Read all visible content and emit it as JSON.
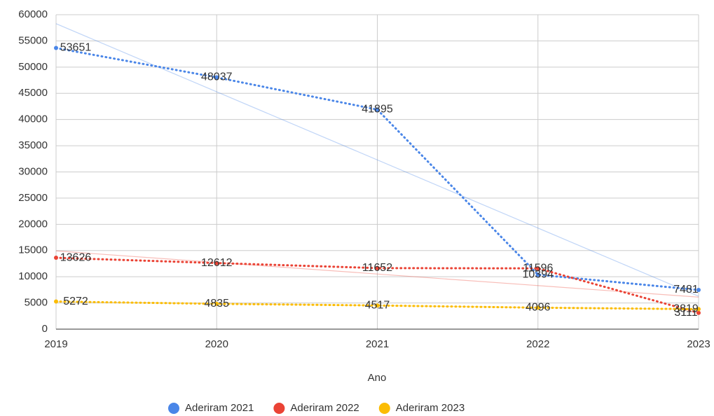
{
  "chart_data": {
    "type": "line",
    "x_label": "Ano",
    "x": [
      2019,
      2020,
      2021,
      2022,
      2023
    ],
    "xlim": [
      2019,
      2023
    ],
    "xticks": [
      2019,
      2020,
      2021,
      2022,
      2023
    ],
    "ylim": [
      0,
      60000
    ],
    "yticks": [
      0,
      5000,
      10000,
      15000,
      20000,
      25000,
      30000,
      35000,
      40000,
      45000,
      50000,
      55000,
      60000
    ],
    "grid": true,
    "trendline": true,
    "line_style": "dotted",
    "legend": "bottom",
    "series": [
      {
        "name": "Aderiram 2021",
        "color": "#4a86e8",
        "values": [
          53651,
          48037,
          41895,
          10394,
          7481
        ]
      },
      {
        "name": "Aderiram 2022",
        "color": "#ea4335",
        "values": [
          13626,
          12612,
          11652,
          11596,
          3111
        ]
      },
      {
        "name": "Aderiram 2023",
        "color": "#fbbc04",
        "values": [
          5272,
          4835,
          4517,
          4096,
          3819
        ]
      }
    ]
  }
}
